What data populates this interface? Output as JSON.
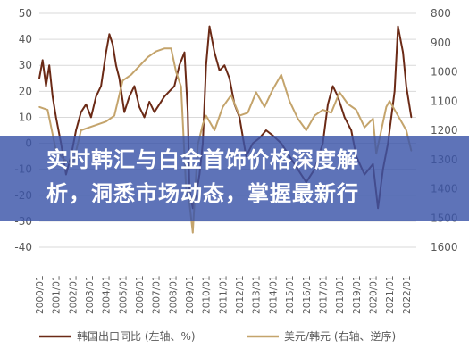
{
  "banner": {
    "line1": "实时韩汇与白金首饰价格深度解",
    "line2": "析，洞悉市场动态，掌握最新行"
  },
  "chart_data": {
    "type": "line",
    "title": "",
    "xlabel": "",
    "ylabel": "",
    "categories": [
      "2000/01",
      "2001/01",
      "2002/01",
      "2003/01",
      "2004/01",
      "2005/01",
      "2006/01",
      "2007/01",
      "2008/01",
      "2009/01",
      "2010/01",
      "2011/01",
      "2012/01",
      "2013/01",
      "2014/01",
      "2015/01",
      "2016/01",
      "2017/01",
      "2018/01",
      "2019/01",
      "2020/01",
      "2021/01",
      "2022/01"
    ],
    "y_left": {
      "ylim": [
        -40,
        50
      ],
      "ticks": [
        "50",
        "40",
        "30",
        "20",
        "10",
        "0",
        "-10",
        "-20",
        "-30",
        "-40"
      ]
    },
    "y_right": {
      "ylim": [
        800,
        1600
      ],
      "inverted": true,
      "ticks": [
        "800",
        "900",
        "1000",
        "1100",
        "1200",
        "1300",
        "1400",
        "1500",
        "1600"
      ]
    },
    "series": [
      {
        "name": "韩国出口同比 (左轴、%)",
        "axis": "left",
        "color": "#6b2a16",
        "x": [
          2000.0,
          2000.2,
          2000.4,
          2000.6,
          2000.8,
          2001.0,
          2001.3,
          2001.6,
          2001.9,
          2002.2,
          2002.5,
          2002.8,
          2003.1,
          2003.4,
          2003.7,
          2004.0,
          2004.2,
          2004.4,
          2004.6,
          2004.8,
          2005.1,
          2005.4,
          2005.7,
          2006.0,
          2006.3,
          2006.6,
          2006.9,
          2007.2,
          2007.5,
          2007.8,
          2008.1,
          2008.4,
          2008.7,
          2008.9,
          2009.0,
          2009.2,
          2009.4,
          2009.6,
          2009.8,
          2010.0,
          2010.2,
          2010.5,
          2010.8,
          2011.1,
          2011.4,
          2011.7,
          2012.0,
          2012.4,
          2012.8,
          2013.2,
          2013.6,
          2014.0,
          2014.5,
          2015.0,
          2015.5,
          2016.0,
          2016.5,
          2017.0,
          2017.3,
          2017.6,
          2017.9,
          2018.3,
          2018.7,
          2019.0,
          2019.5,
          2020.0,
          2020.3,
          2020.6,
          2020.9,
          2021.1,
          2021.3,
          2021.5,
          2021.8,
          2022.0,
          2022.3
        ],
        "values": [
          25,
          32,
          22,
          30,
          18,
          10,
          0,
          -12,
          -5,
          5,
          12,
          15,
          10,
          18,
          22,
          35,
          42,
          38,
          30,
          25,
          12,
          18,
          22,
          14,
          10,
          16,
          12,
          15,
          18,
          20,
          22,
          30,
          35,
          12,
          -18,
          -25,
          -20,
          -12,
          0,
          30,
          45,
          35,
          28,
          30,
          25,
          15,
          10,
          -5,
          0,
          2,
          5,
          3,
          0,
          -5,
          -10,
          -15,
          -10,
          0,
          15,
          22,
          18,
          10,
          5,
          -5,
          -12,
          -8,
          -25,
          -10,
          0,
          10,
          20,
          45,
          35,
          22,
          10
        ]
      },
      {
        "name": "美元/韩元 (右轴、逆序)",
        "axis": "right",
        "color": "#c4a46c",
        "x": [
          2000.0,
          2000.5,
          2001.0,
          2001.5,
          2002.0,
          2002.5,
          2003.0,
          2003.5,
          2004.0,
          2004.5,
          2005.0,
          2005.5,
          2006.0,
          2006.5,
          2007.0,
          2007.5,
          2007.9,
          2008.2,
          2008.5,
          2008.8,
          2009.0,
          2009.2,
          2009.5,
          2009.8,
          2010.0,
          2010.5,
          2011.0,
          2011.5,
          2012.0,
          2012.5,
          2013.0,
          2013.5,
          2014.0,
          2014.5,
          2015.0,
          2015.5,
          2016.0,
          2016.5,
          2017.0,
          2017.5,
          2018.0,
          2018.5,
          2019.0,
          2019.5,
          2020.0,
          2020.2,
          2020.5,
          2020.8,
          2021.0,
          2021.5,
          2022.0,
          2022.3
        ],
        "values": [
          1120,
          1130,
          1270,
          1300,
          1320,
          1200,
          1190,
          1180,
          1170,
          1150,
          1030,
          1010,
          980,
          950,
          930,
          920,
          920,
          1000,
          1050,
          1400,
          1450,
          1550,
          1250,
          1180,
          1150,
          1200,
          1120,
          1080,
          1150,
          1140,
          1070,
          1120,
          1060,
          1010,
          1100,
          1160,
          1200,
          1150,
          1130,
          1140,
          1070,
          1110,
          1130,
          1190,
          1160,
          1280,
          1200,
          1120,
          1100,
          1150,
          1200,
          1270
        ]
      }
    ],
    "legend": {
      "placement": "bottom"
    }
  }
}
